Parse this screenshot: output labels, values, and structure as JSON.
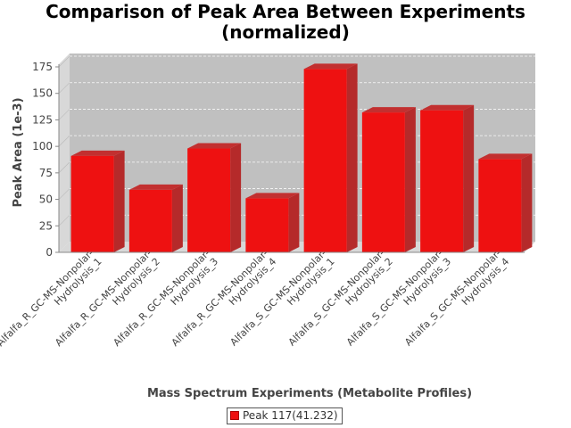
{
  "chart_data": {
    "type": "bar",
    "title": [
      "Comparison of Peak Area Between Experiments",
      "(normalized)"
    ],
    "xlabel": "Mass Spectrum Experiments (Metabolite Profiles)",
    "ylabel": "Peak Area (1e-3)",
    "ylim": [
      0,
      175
    ],
    "yticks": [
      0,
      25,
      50,
      75,
      100,
      125,
      150,
      175
    ],
    "grid": true,
    "legend_position": "bottom",
    "categories": [
      [
        "Alfalfa_R_GC-MS-Nonpolar-",
        "Hydrolysis_1"
      ],
      [
        "Alfalfa_R_GC-MS-Nonpolar-",
        "Hydrolysis_2"
      ],
      [
        "Alfalfa_R_GC-MS-Nonpolar-",
        "Hydrolysis_3"
      ],
      [
        "Alfalfa_R_GC-MS-Nonpolar-",
        "Hydrolysis_4"
      ],
      [
        "Alfalfa_S_GC-MS-Nonpolar-",
        "Hydrolysis_1"
      ],
      [
        "Alfalfa_S_GC-MS-Nonpolar-",
        "Hydrolysis_2"
      ],
      [
        "Alfalfa_S_GC-MS-Nonpolar-",
        "Hydrolysis_3"
      ],
      [
        "Alfalfa_S_GC-MS-Nonpolar-",
        "Hydrolysis_4"
      ]
    ],
    "series": [
      {
        "name": "Peak 117(41.232)",
        "color": "#ee1111",
        "values": [
          91,
          59,
          98,
          51,
          173,
          132,
          134,
          88
        ]
      }
    ]
  }
}
